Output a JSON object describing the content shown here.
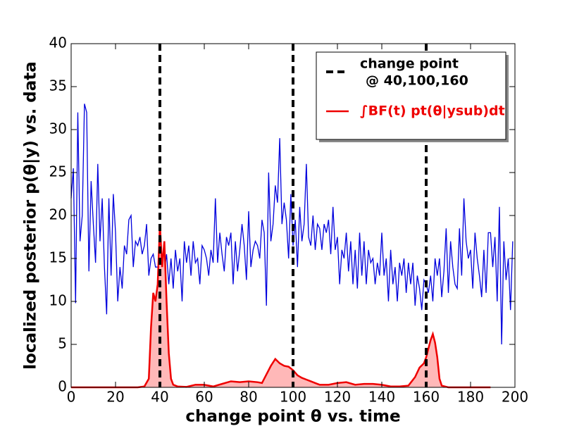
{
  "chart_data": {
    "type": "line",
    "xlabel": "change point θ vs. time",
    "ylabel": "localized posterior p(θ|y) vs. data",
    "xlim": [
      0,
      200
    ],
    "xticks": [
      0,
      20,
      40,
      60,
      80,
      100,
      120,
      140,
      160,
      180,
      200
    ],
    "ylim": [
      0,
      40
    ],
    "yticks": [
      0,
      5,
      10,
      15,
      20,
      25,
      30,
      35,
      40
    ],
    "legend": "upper right",
    "vlines": {
      "x": [
        40,
        100,
        160
      ],
      "color": "#000000",
      "style": "dashed",
      "label": [
        "change point",
        "@ 40,100,160"
      ]
    },
    "series": [
      {
        "color": "#0000dd",
        "fill": false,
        "x": [
          0,
          1,
          2,
          3,
          4,
          5,
          6,
          7,
          8,
          9,
          10,
          11,
          12,
          13,
          14,
          15,
          16,
          17,
          18,
          19,
          20,
          21,
          22,
          23,
          24,
          25,
          26,
          27,
          28,
          29,
          30,
          31,
          32,
          33,
          34,
          35,
          36,
          37,
          38,
          39,
          40,
          41,
          42,
          43,
          44,
          45,
          46,
          47,
          48,
          49,
          50,
          51,
          52,
          53,
          54,
          55,
          56,
          57,
          58,
          59,
          60,
          61,
          62,
          63,
          64,
          65,
          66,
          67,
          68,
          69,
          70,
          71,
          72,
          73,
          74,
          75,
          76,
          77,
          78,
          79,
          80,
          81,
          82,
          83,
          84,
          85,
          86,
          87,
          88,
          89,
          90,
          91,
          92,
          93,
          94,
          95,
          96,
          97,
          98,
          99,
          100,
          101,
          102,
          103,
          104,
          105,
          106,
          107,
          108,
          109,
          110,
          111,
          112,
          113,
          114,
          115,
          116,
          117,
          118,
          119,
          120,
          121,
          122,
          123,
          124,
          125,
          126,
          127,
          128,
          129,
          130,
          131,
          132,
          133,
          134,
          135,
          136,
          137,
          138,
          139,
          140,
          141,
          142,
          143,
          144,
          145,
          146,
          147,
          148,
          149,
          150,
          151,
          152,
          153,
          154,
          155,
          156,
          157,
          158,
          159,
          160,
          161,
          162,
          163,
          164,
          165,
          166,
          167,
          168,
          169,
          170,
          171,
          172,
          173,
          174,
          175,
          176,
          177,
          178,
          179,
          180,
          181,
          182,
          183,
          184,
          185,
          186,
          187,
          188,
          189,
          190,
          191,
          192,
          193,
          194,
          195,
          196,
          197,
          198,
          199
        ],
        "values": [
          22,
          25.5,
          9.8,
          32,
          17,
          20,
          33,
          32,
          13.5,
          24,
          19,
          14.5,
          26,
          17,
          22,
          14,
          8.5,
          22,
          13,
          22.5,
          18,
          10,
          14,
          11.5,
          16.5,
          15.5,
          19.5,
          20,
          14,
          17,
          16.5,
          17.5,
          15.5,
          16.5,
          19,
          13,
          15,
          15.5,
          14,
          14,
          13.5,
          14.5,
          13.5,
          15.5,
          12,
          15,
          11.5,
          16,
          13.5,
          15,
          10,
          17,
          14.5,
          16.5,
          13,
          17,
          14.5,
          15,
          12,
          16.5,
          16,
          15,
          13,
          16,
          14.5,
          22,
          14.5,
          18,
          15.5,
          13.5,
          17.5,
          16.5,
          18,
          12,
          17,
          13.5,
          16,
          19,
          16.5,
          12.5,
          20.5,
          14,
          16,
          17,
          16.5,
          15,
          19.5,
          18,
          9.5,
          25,
          17,
          19,
          23.5,
          21.5,
          29,
          19,
          21.5,
          19.5,
          15,
          22.5,
          16.5,
          19.5,
          14,
          21,
          17,
          19,
          26,
          17.5,
          16.5,
          20,
          16,
          19,
          18.5,
          16,
          19,
          18,
          19.5,
          15.5,
          21,
          16,
          17.5,
          12,
          16,
          15,
          18,
          13.5,
          17,
          12,
          16,
          11.5,
          18,
          13,
          17,
          12,
          16,
          14.5,
          15,
          12,
          14.5,
          13,
          18,
          13,
          15,
          10,
          16,
          12,
          14,
          10,
          14.5,
          13,
          15,
          11,
          14.5,
          12,
          14.5,
          9.5,
          13,
          11.5,
          9,
          12.5,
          12,
          11,
          13,
          10,
          15,
          13,
          15,
          10.5,
          13.5,
          18.5,
          11,
          17,
          14,
          12,
          11.5,
          18.5,
          13,
          22,
          17,
          15,
          16,
          11.5,
          18,
          15,
          13,
          10.5,
          16,
          11,
          18,
          18,
          14,
          17.5,
          10,
          21,
          5,
          17,
          12.5,
          15,
          9,
          17
        ]
      },
      {
        "name": "∫BF(t) pt(θ|ysub)dt",
        "color": "#ee0000",
        "fill": true,
        "fill_color": "#ffb8b8",
        "x": [
          0,
          10,
          20,
          30,
          33,
          35,
          36,
          37,
          38,
          39,
          40,
          41,
          42,
          43,
          44,
          45,
          46,
          48,
          52,
          56,
          60,
          64,
          68,
          72,
          76,
          80,
          84,
          86,
          88,
          90,
          92,
          94,
          96,
          98,
          100,
          102,
          104,
          106,
          108,
          110,
          112,
          116,
          120,
          124,
          128,
          132,
          136,
          140,
          144,
          148,
          152,
          155,
          157,
          159,
          160,
          161,
          162,
          163,
          164,
          165,
          166,
          167,
          170,
          180,
          189
        ],
        "values": [
          0,
          0,
          0,
          0,
          0.1,
          1,
          7,
          11,
          10,
          12,
          19,
          14,
          17,
          10,
          4,
          1,
          0.3,
          0.1,
          0.05,
          0.3,
          0.3,
          0.1,
          0.4,
          0.7,
          0.6,
          0.7,
          0.6,
          0.5,
          1.5,
          2.5,
          3.3,
          2.8,
          2.5,
          2.4,
          2.0,
          1.4,
          1.1,
          0.9,
          0.7,
          0.5,
          0.3,
          0.3,
          0.5,
          0.6,
          0.3,
          0.4,
          0.4,
          0.3,
          0.1,
          0.1,
          0.2,
          1.2,
          2.3,
          2.8,
          3.5,
          4.5,
          5.5,
          6.2,
          5.2,
          3.5,
          1.0,
          0.2,
          0,
          0,
          0
        ]
      }
    ]
  }
}
